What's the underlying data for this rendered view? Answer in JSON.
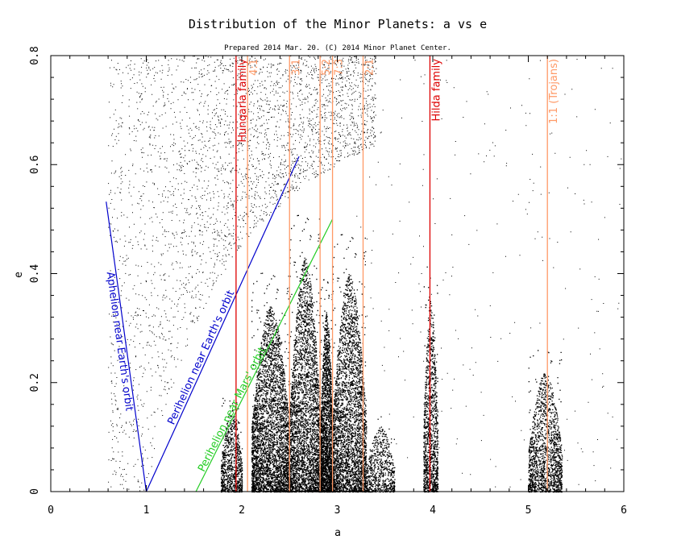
{
  "chart_data": {
    "type": "scatter",
    "title": "Distribution of the Minor Planets: a vs e",
    "subtitle": "Prepared 2014 Mar. 20.  (C) 2014 Minor Planet Center.",
    "xlabel": "a",
    "ylabel": "e",
    "xlim": [
      0,
      6
    ],
    "ylim": [
      0,
      0.8
    ],
    "xticks": [
      0,
      1,
      2,
      3,
      4,
      5,
      6
    ],
    "xtick_labels": [
      "0",
      "1",
      "2",
      "3",
      "4",
      "5",
      "6"
    ],
    "yticks": [
      0,
      0.2,
      0.4,
      0.6,
      0.8
    ],
    "ytick_labels": [
      "0",
      "0.2",
      "0.4",
      "0.6",
      "0.8"
    ],
    "grid": false,
    "point_color": "#000000",
    "clusters": [
      {
        "a_range": [
          1.78,
          2.0
        ],
        "e_max": 0.15
      },
      {
        "a_range": [
          2.1,
          2.5
        ],
        "e_max": 0.34
      },
      {
        "a_range": [
          2.5,
          2.82
        ],
        "e_max": 0.43
      },
      {
        "a_range": [
          2.82,
          2.95
        ],
        "e_max": 0.33
      },
      {
        "a_range": [
          2.95,
          3.3
        ],
        "e_max": 0.4
      },
      {
        "a_range": [
          3.3,
          3.6
        ],
        "e_max": 0.12
      },
      {
        "a_range": [
          3.9,
          4.05
        ],
        "e_max": 0.35
      },
      {
        "a_range": [
          5.0,
          5.35
        ],
        "e_max": 0.22
      }
    ],
    "reference_lines": [
      {
        "label": "Aphelion near Earth's orbit",
        "color": "#0000cc",
        "points": [
          [
            0.58,
            0.532
          ],
          [
            1.0,
            0.0
          ]
        ]
      },
      {
        "label": "Perihelion near Earth's orbit",
        "color": "#0000cc",
        "points": [
          [
            1.0,
            0.0
          ],
          [
            2.6,
            0.615
          ]
        ]
      },
      {
        "label": "Perihelion near Mars' orbit",
        "color": "#22cc22",
        "points": [
          [
            1.52,
            0.0
          ],
          [
            2.95,
            0.5
          ]
        ]
      }
    ],
    "family_lines": [
      {
        "a": 1.94,
        "label": "Hungaria family",
        "color": "#dd0000"
      },
      {
        "a": 3.97,
        "label": "Hilda family",
        "color": "#dd0000"
      }
    ],
    "resonance_lines": [
      {
        "a": 2.06,
        "label": "4:1",
        "color": "#ff9966"
      },
      {
        "a": 2.5,
        "label": "3:1",
        "color": "#ff9966"
      },
      {
        "a": 2.82,
        "label": "5:2",
        "color": "#ff9966"
      },
      {
        "a": 2.95,
        "label": "7:3",
        "color": "#ff9966"
      },
      {
        "a": 3.27,
        "label": "2:1",
        "color": "#ff9966"
      },
      {
        "a": 5.2,
        "label": "1:1 (Trojans)",
        "color": "#ff9966"
      }
    ]
  }
}
